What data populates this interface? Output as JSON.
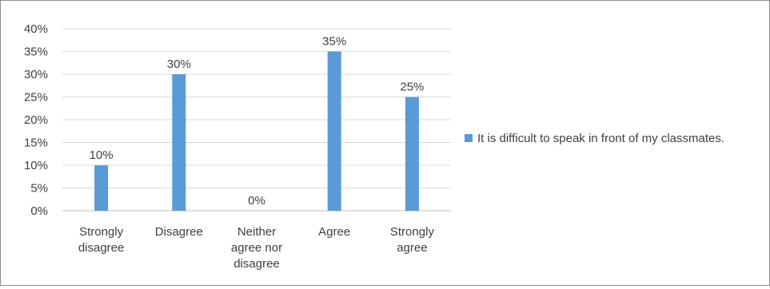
{
  "chart_data": {
    "type": "bar",
    "categories": [
      [
        "Strongly",
        "disagree"
      ],
      [
        "Disagree"
      ],
      [
        "Neither",
        "agree nor",
        "disagree"
      ],
      [
        "Agree"
      ],
      [
        "Strongly",
        "agree"
      ]
    ],
    "series": [
      {
        "name": "It is difficult to speak in front of my classmates.",
        "values": [
          10,
          30,
          0,
          35,
          25
        ],
        "labels": [
          "10%",
          "30%",
          "0%",
          "35%",
          "25%"
        ],
        "color": "#5b9bd5"
      }
    ],
    "y_ticks": [
      "0%",
      "5%",
      "10%",
      "15%",
      "20%",
      "25%",
      "30%",
      "35%",
      "40%"
    ],
    "ylim": [
      0,
      40
    ],
    "grid": true,
    "legend_position": "right"
  }
}
